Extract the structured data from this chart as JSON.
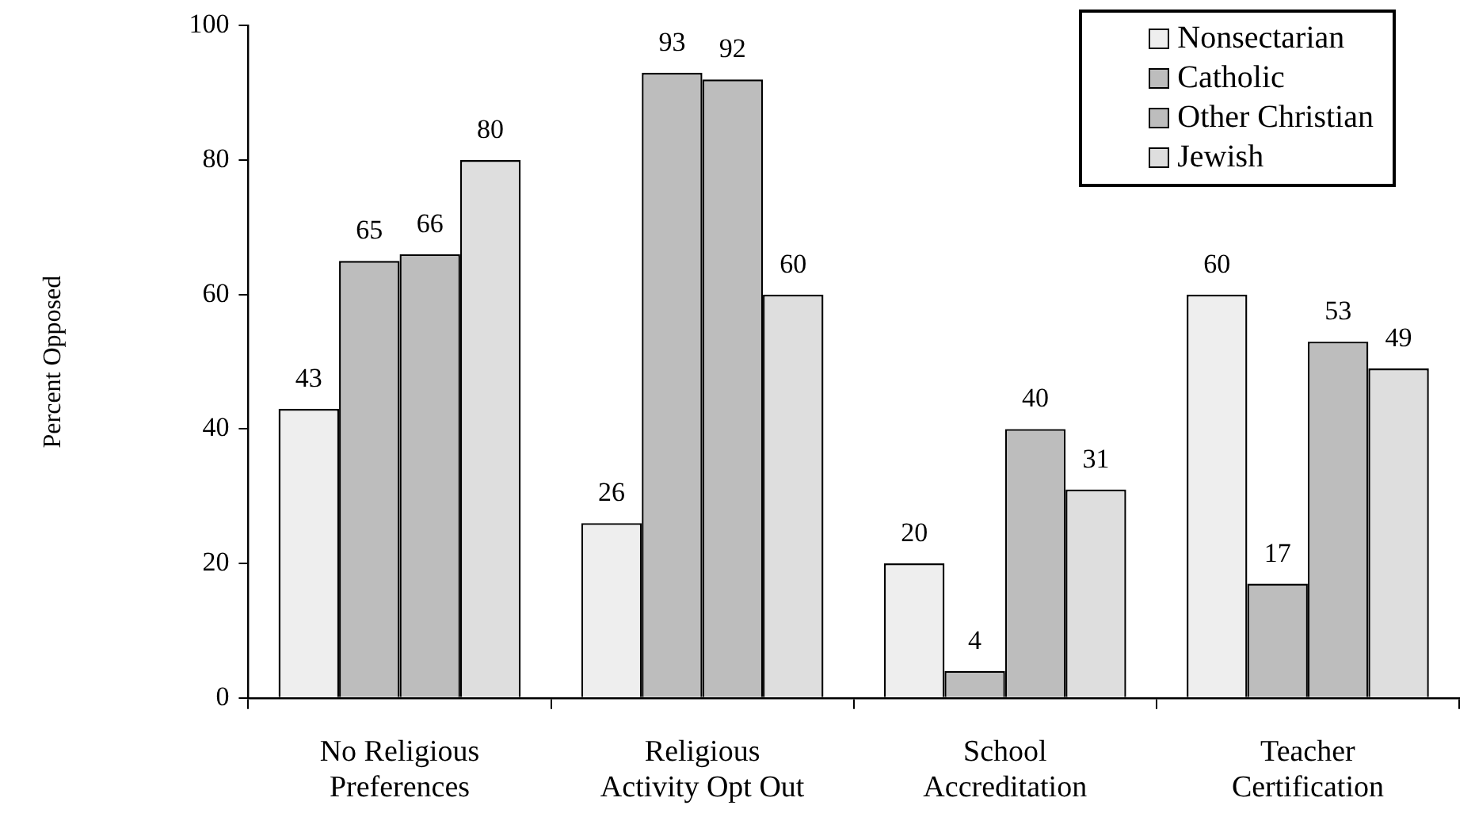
{
  "chart_data": {
    "type": "bar",
    "ylabel": "Percent Opposed",
    "categories": [
      "No Religious\nPreferences",
      "Religious\nActivity Opt Out",
      "School\nAccreditation",
      "Teacher\nCertification"
    ],
    "series": [
      {
        "name": "Nonsectarian",
        "color": "#eeeeee",
        "values": [
          43,
          26,
          20,
          60
        ]
      },
      {
        "name": "Catholic",
        "color": "#bdbdbd",
        "values": [
          65,
          93,
          4,
          17
        ]
      },
      {
        "name": "Other Christian",
        "color": "#bdbdbd",
        "values": [
          66,
          92,
          40,
          53
        ]
      },
      {
        "name": "Jewish",
        "color": "#dedede",
        "values": [
          80,
          60,
          31,
          49
        ]
      }
    ],
    "ylim": [
      0,
      100
    ],
    "yticks": [
      0,
      20,
      40,
      60,
      80,
      100
    ],
    "grid": false,
    "legend": "top right",
    "data_labels": true
  }
}
